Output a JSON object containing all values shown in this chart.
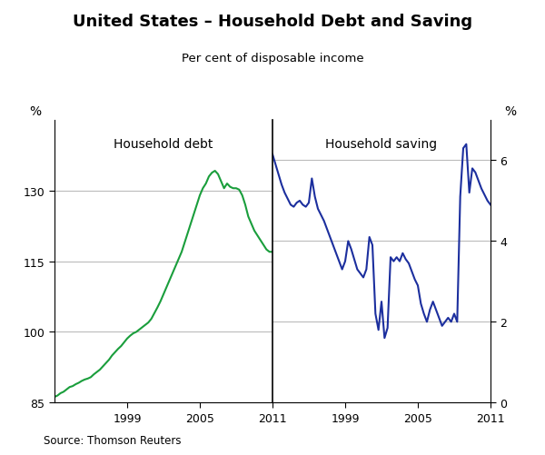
{
  "title": "United States – Household Debt and Saving",
  "subtitle": "Per cent of disposable income",
  "left_label": "Household debt",
  "right_label": "Household saving",
  "left_ylabel": "%",
  "right_ylabel": "%",
  "source": "Source: Thomson Reuters",
  "left_ylim": [
    85,
    145
  ],
  "right_ylim": [
    0,
    7
  ],
  "left_yticks": [
    85,
    100,
    115,
    130
  ],
  "right_yticks": [
    0,
    2,
    4,
    6
  ],
  "left_color": "#1a9e3c",
  "right_color": "#1c2f9e",
  "background_color": "#ffffff",
  "grid_color": "#bbbbbb",
  "debt_data": [
    [
      1993.0,
      86.2
    ],
    [
      1993.25,
      86.5
    ],
    [
      1993.5,
      87.0
    ],
    [
      1993.75,
      87.3
    ],
    [
      1994.0,
      87.8
    ],
    [
      1994.25,
      88.3
    ],
    [
      1994.5,
      88.5
    ],
    [
      1994.75,
      88.9
    ],
    [
      1995.0,
      89.2
    ],
    [
      1995.25,
      89.6
    ],
    [
      1995.5,
      89.9
    ],
    [
      1995.75,
      90.1
    ],
    [
      1996.0,
      90.4
    ],
    [
      1996.25,
      91.0
    ],
    [
      1996.5,
      91.5
    ],
    [
      1996.75,
      92.0
    ],
    [
      1997.0,
      92.7
    ],
    [
      1997.25,
      93.4
    ],
    [
      1997.5,
      94.1
    ],
    [
      1997.75,
      95.0
    ],
    [
      1998.0,
      95.7
    ],
    [
      1998.25,
      96.4
    ],
    [
      1998.5,
      97.0
    ],
    [
      1998.75,
      97.8
    ],
    [
      1999.0,
      98.6
    ],
    [
      1999.25,
      99.2
    ],
    [
      1999.5,
      99.7
    ],
    [
      1999.75,
      100.0
    ],
    [
      2000.0,
      100.5
    ],
    [
      2000.25,
      101.0
    ],
    [
      2000.5,
      101.5
    ],
    [
      2000.75,
      102.0
    ],
    [
      2001.0,
      102.8
    ],
    [
      2001.25,
      104.0
    ],
    [
      2001.5,
      105.2
    ],
    [
      2001.75,
      106.5
    ],
    [
      2002.0,
      108.0
    ],
    [
      2002.25,
      109.5
    ],
    [
      2002.5,
      111.0
    ],
    [
      2002.75,
      112.5
    ],
    [
      2003.0,
      114.0
    ],
    [
      2003.25,
      115.5
    ],
    [
      2003.5,
      117.0
    ],
    [
      2003.75,
      119.0
    ],
    [
      2004.0,
      121.0
    ],
    [
      2004.25,
      123.0
    ],
    [
      2004.5,
      125.0
    ],
    [
      2004.75,
      127.0
    ],
    [
      2005.0,
      129.0
    ],
    [
      2005.25,
      130.5
    ],
    [
      2005.5,
      131.5
    ],
    [
      2005.75,
      133.0
    ],
    [
      2006.0,
      133.8
    ],
    [
      2006.25,
      134.2
    ],
    [
      2006.5,
      133.5
    ],
    [
      2006.75,
      132.0
    ],
    [
      2007.0,
      130.5
    ],
    [
      2007.25,
      131.5
    ],
    [
      2007.5,
      130.8
    ],
    [
      2007.75,
      130.5
    ],
    [
      2008.0,
      130.5
    ],
    [
      2008.25,
      130.2
    ],
    [
      2008.5,
      129.0
    ],
    [
      2008.75,
      127.0
    ],
    [
      2009.0,
      124.5
    ],
    [
      2009.25,
      123.0
    ],
    [
      2009.5,
      121.5
    ],
    [
      2009.75,
      120.5
    ],
    [
      2010.0,
      119.5
    ],
    [
      2010.25,
      118.5
    ],
    [
      2010.5,
      117.5
    ],
    [
      2010.75,
      117.0
    ],
    [
      2011.0,
      117.0
    ]
  ],
  "saving_data": [
    [
      1993.0,
      6.15
    ],
    [
      1993.25,
      5.9
    ],
    [
      1993.5,
      5.65
    ],
    [
      1993.75,
      5.4
    ],
    [
      1994.0,
      5.2
    ],
    [
      1994.25,
      5.05
    ],
    [
      1994.5,
      4.9
    ],
    [
      1994.75,
      4.85
    ],
    [
      1995.0,
      4.95
    ],
    [
      1995.25,
      5.0
    ],
    [
      1995.5,
      4.9
    ],
    [
      1995.75,
      4.85
    ],
    [
      1996.0,
      4.95
    ],
    [
      1996.25,
      5.55
    ],
    [
      1996.5,
      5.1
    ],
    [
      1996.75,
      4.8
    ],
    [
      1997.0,
      4.65
    ],
    [
      1997.25,
      4.5
    ],
    [
      1997.5,
      4.3
    ],
    [
      1997.75,
      4.1
    ],
    [
      1998.0,
      3.9
    ],
    [
      1998.25,
      3.7
    ],
    [
      1998.5,
      3.5
    ],
    [
      1998.75,
      3.3
    ],
    [
      1999.0,
      3.5
    ],
    [
      1999.25,
      4.0
    ],
    [
      1999.5,
      3.8
    ],
    [
      1999.75,
      3.55
    ],
    [
      2000.0,
      3.3
    ],
    [
      2000.25,
      3.2
    ],
    [
      2000.5,
      3.1
    ],
    [
      2000.75,
      3.3
    ],
    [
      2001.0,
      4.1
    ],
    [
      2001.25,
      3.9
    ],
    [
      2001.5,
      2.2
    ],
    [
      2001.75,
      1.8
    ],
    [
      2002.0,
      2.5
    ],
    [
      2002.25,
      1.6
    ],
    [
      2002.5,
      1.85
    ],
    [
      2002.75,
      3.6
    ],
    [
      2003.0,
      3.5
    ],
    [
      2003.25,
      3.6
    ],
    [
      2003.5,
      3.5
    ],
    [
      2003.75,
      3.7
    ],
    [
      2004.0,
      3.55
    ],
    [
      2004.25,
      3.45
    ],
    [
      2004.5,
      3.25
    ],
    [
      2004.75,
      3.05
    ],
    [
      2005.0,
      2.9
    ],
    [
      2005.25,
      2.45
    ],
    [
      2005.5,
      2.2
    ],
    [
      2005.75,
      2.0
    ],
    [
      2006.0,
      2.3
    ],
    [
      2006.25,
      2.5
    ],
    [
      2006.5,
      2.3
    ],
    [
      2006.75,
      2.1
    ],
    [
      2007.0,
      1.9
    ],
    [
      2007.25,
      2.0
    ],
    [
      2007.5,
      2.1
    ],
    [
      2007.75,
      2.0
    ],
    [
      2008.0,
      2.2
    ],
    [
      2008.25,
      2.0
    ],
    [
      2008.5,
      5.1
    ],
    [
      2008.75,
      6.3
    ],
    [
      2009.0,
      6.4
    ],
    [
      2009.25,
      5.2
    ],
    [
      2009.5,
      5.8
    ],
    [
      2009.75,
      5.7
    ],
    [
      2010.0,
      5.5
    ],
    [
      2010.25,
      5.3
    ],
    [
      2010.5,
      5.15
    ],
    [
      2010.75,
      5.0
    ],
    [
      2011.0,
      4.9
    ]
  ]
}
